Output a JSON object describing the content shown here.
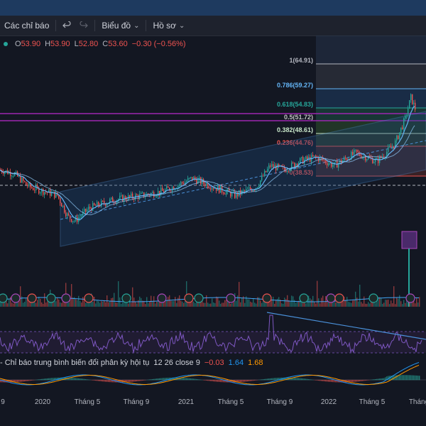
{
  "toolbar": {
    "indicators_label": "Các chỉ báo",
    "undo_icon": "undo-icon",
    "redo_icon": "redo-icon",
    "chart_type_label": "Biểu đồ",
    "profile_label": "Hồ sơ"
  },
  "ohlc": {
    "o_label": "O",
    "o_value": "53.90",
    "h_label": "H",
    "h_value": "53.90",
    "l_label": "L",
    "l_value": "52.80",
    "c_label": "C",
    "c_value": "53.60",
    "change": "−0.30 (−0.56%)"
  },
  "fib_levels": [
    {
      "label": "1(64.91)",
      "ratio": 1,
      "price": 64.91,
      "color": "#b2b5be"
    },
    {
      "label": "0.786(59.27)",
      "ratio": 0.786,
      "price": 59.27,
      "color": "#64b5f6"
    },
    {
      "label": "0.618(54.83)",
      "ratio": 0.618,
      "price": 54.83,
      "color": "#26a69a"
    },
    {
      "label": "0.5(51.72)",
      "ratio": 0.5,
      "price": 51.72,
      "color": "#c0c0c0"
    },
    {
      "label": "0.382(48.61)",
      "ratio": 0.382,
      "price": 48.61,
      "color": "#c8e6c9"
    },
    {
      "label": "0.236(44.76)",
      "ratio": 0.236,
      "price": 44.76,
      "color": "#ef5350"
    },
    {
      "label": "0(38.53)",
      "ratio": 0,
      "price": 38.53,
      "color": "#ef5350"
    }
  ],
  "macd_legend": {
    "name": "- Chỉ báo trung bình biến đổi phân kỳ hội tụ",
    "params": "12 26 close 9",
    "hist": "−0.03",
    "macd": "1.64",
    "signal": "1.68"
  },
  "x_axis_labels": [
    "9",
    "2020",
    "Tháng 5",
    "Tháng 9",
    "2021",
    "Tháng 5",
    "Tháng 9",
    "2022",
    "Tháng 5",
    "Tháng"
  ],
  "chart_data": {
    "type": "line",
    "title": "",
    "xlabel": "",
    "ylabel": "",
    "x": [
      "9",
      "2020",
      "Tháng 5",
      "Tháng 9",
      "2021",
      "Tháng 5",
      "Tháng 9",
      "2022",
      "Tháng 5",
      "Tháng"
    ],
    "series": [
      {
        "values": [
          40,
          37,
          27,
          32,
          35,
          34,
          42,
          44,
          47,
          54
        ]
      }
    ],
    "ylim": [
      20,
      70
    ],
    "grid": false
  },
  "colors": {
    "background": "#131722",
    "up": "#26a69a",
    "down": "#ef5350",
    "channel": "#4a90d9",
    "rsi": "#7e57c2"
  }
}
